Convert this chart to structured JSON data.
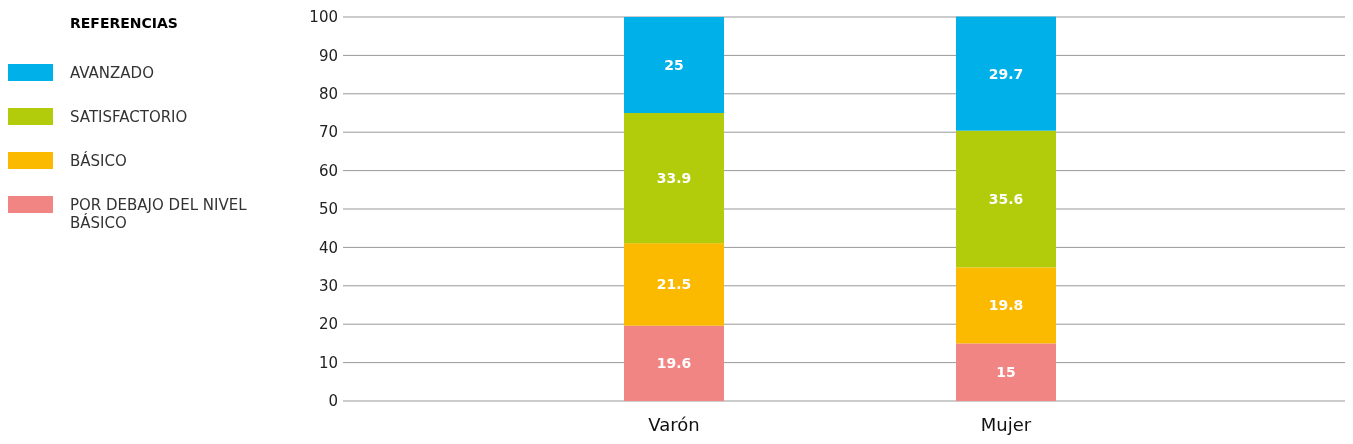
{
  "chart_data": {
    "type": "bar",
    "stacked": true,
    "categories": [
      "Varón",
      "Mujer"
    ],
    "series": [
      {
        "name": "POR DEBAJO DEL NIVEL BÁSICO",
        "color": "#f08583",
        "values": [
          19.6,
          15
        ]
      },
      {
        "name": "BÁSICO",
        "color": "#fbb900",
        "values": [
          21.5,
          19.8
        ]
      },
      {
        "name": "SATISFACTORIO",
        "color": "#b2cb0b",
        "values": [
          33.9,
          35.6
        ]
      },
      {
        "name": "AVANZADO",
        "color": "#00b0e8",
        "values": [
          25,
          29.7
        ]
      }
    ],
    "legend_title": "REFERENCIAS",
    "legend": "top left",
    "ylim": [
      0,
      100
    ],
    "yticks": [
      0,
      10,
      20,
      30,
      40,
      50,
      60,
      70,
      80,
      90,
      100
    ],
    "grid": "y",
    "data_labels": true
  }
}
